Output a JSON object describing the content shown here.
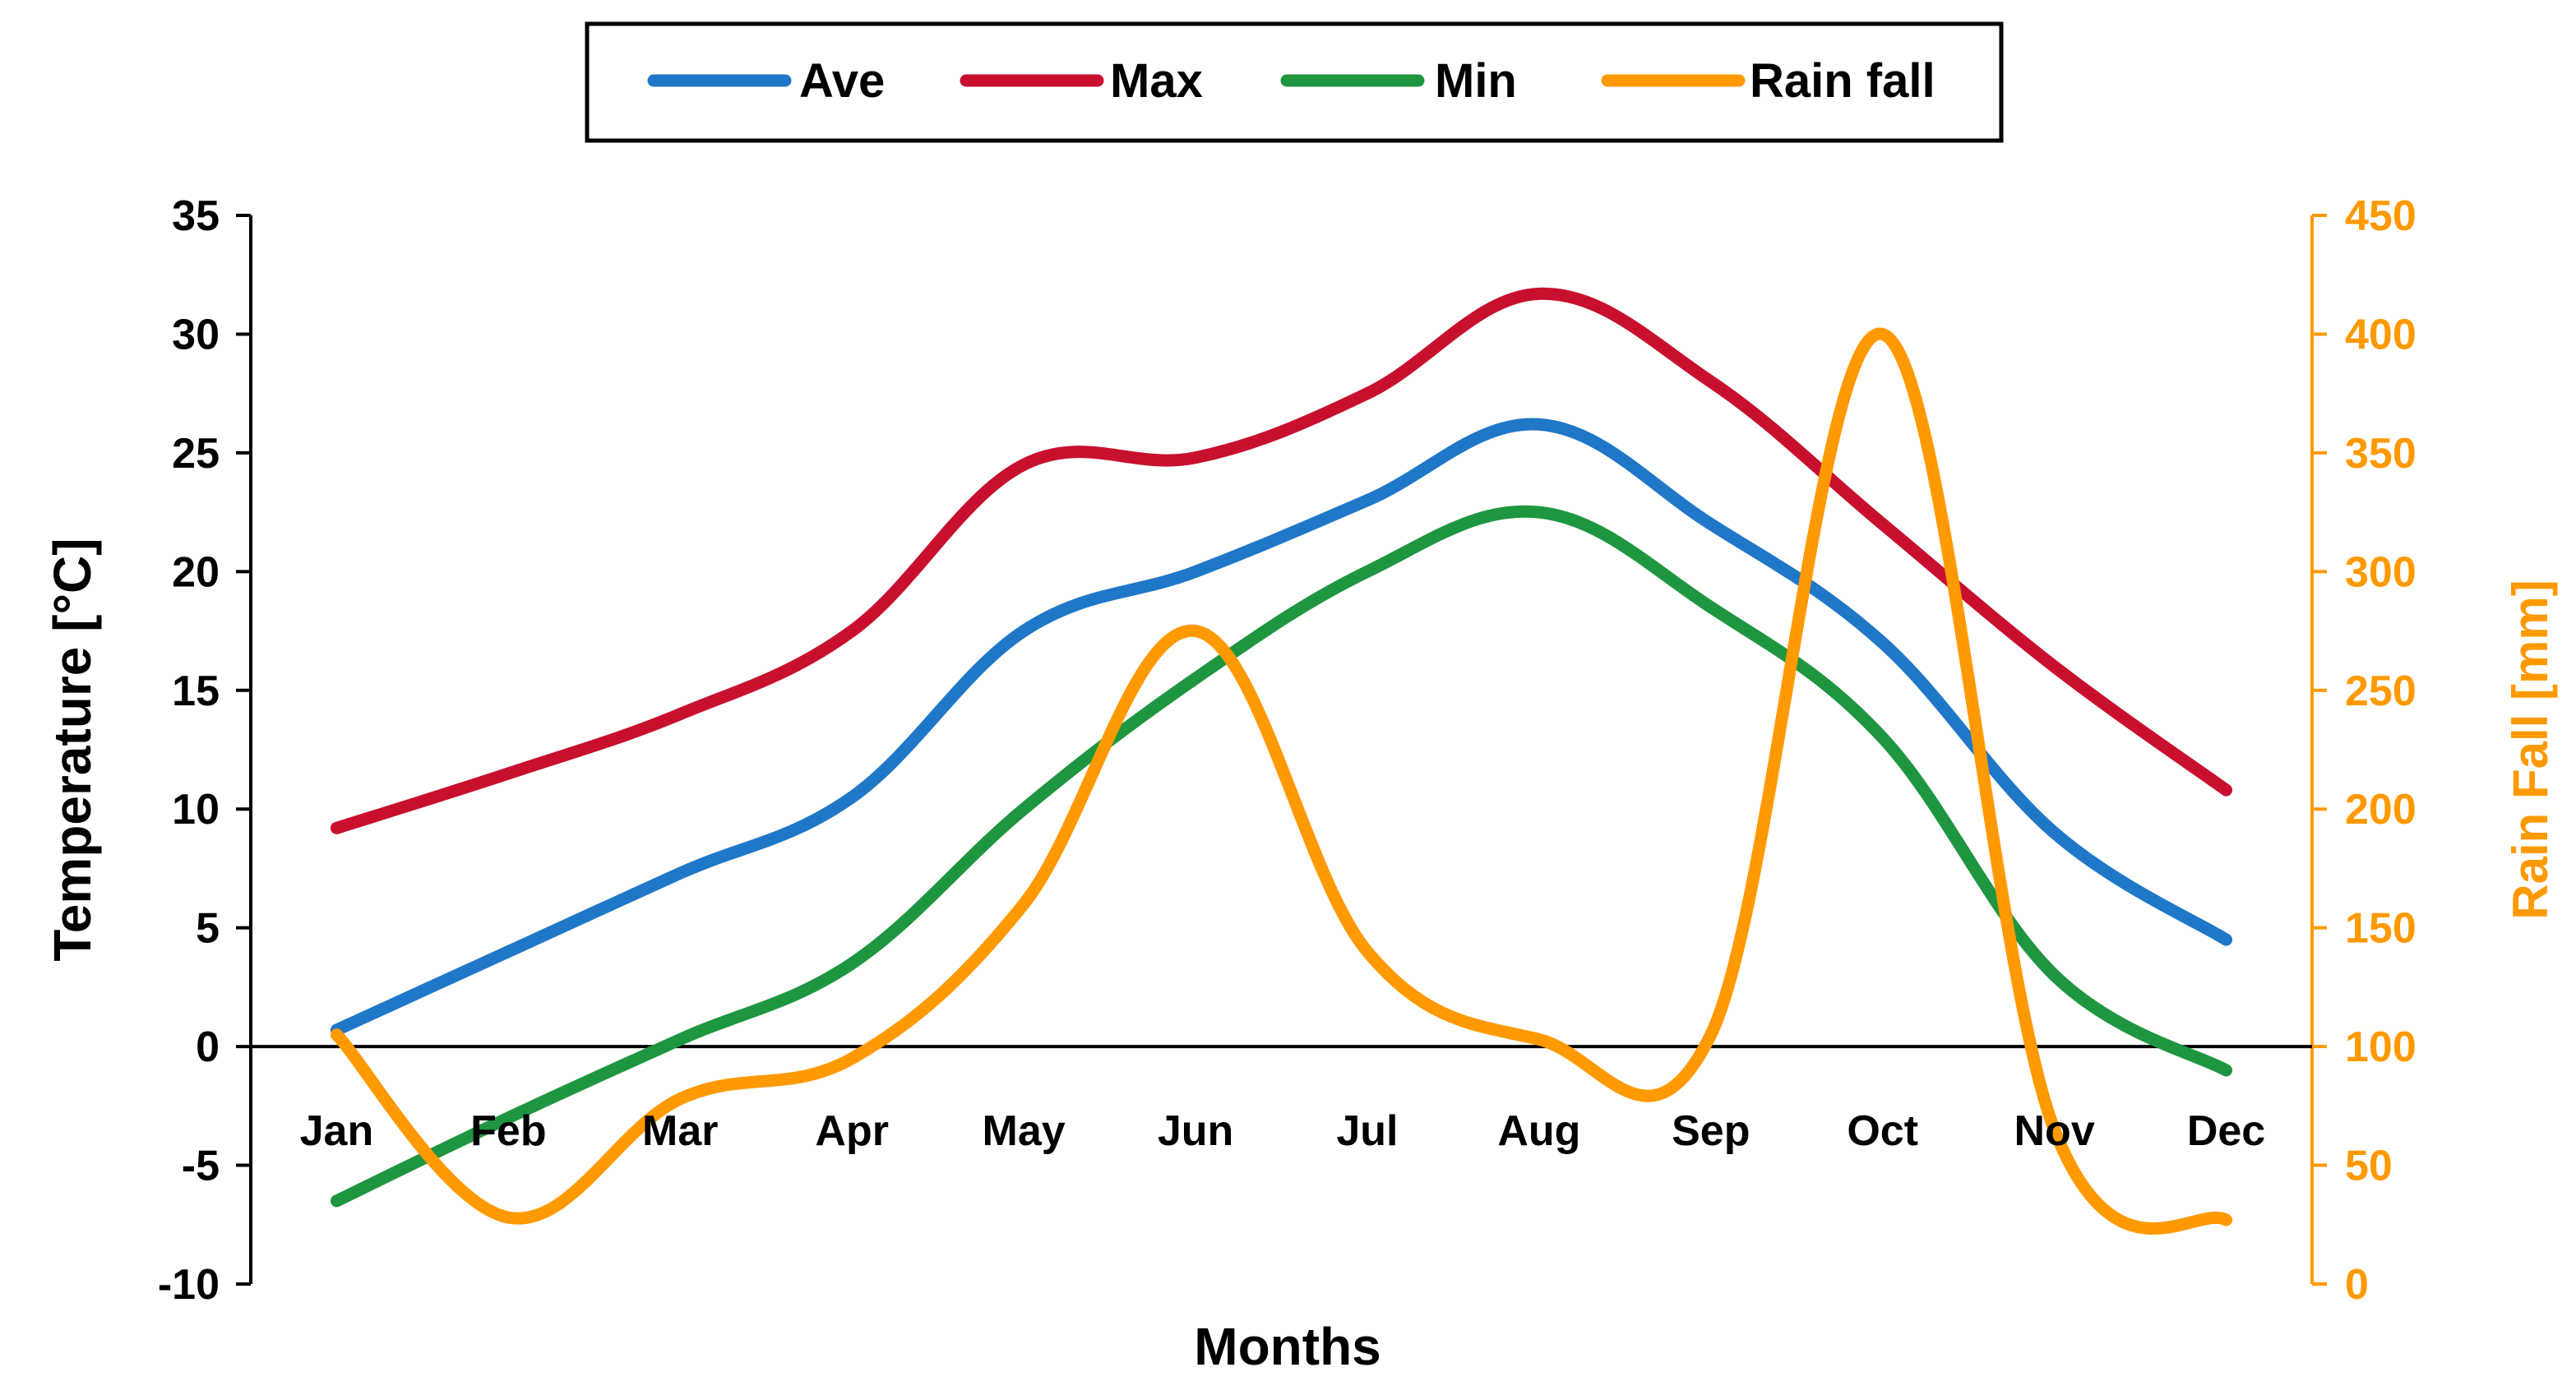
{
  "chart_data": {
    "type": "line",
    "categories": [
      "Jan",
      "Feb",
      "Mar",
      "Apr",
      "May",
      "Jun",
      "Jul",
      "Aug",
      "Sep",
      "Oct",
      "Nov",
      "Dec"
    ],
    "series": [
      {
        "name": "Ave",
        "axis": "left",
        "color": "#1f77c8",
        "values": [
          0.7,
          4.0,
          7.3,
          10.5,
          17.5,
          20.0,
          23.0,
          26.2,
          22.0,
          17.0,
          9.0,
          4.5
        ]
      },
      {
        "name": "Max",
        "axis": "left",
        "color": "#c8102e",
        "values": [
          9.2,
          11.5,
          14.0,
          17.5,
          24.5,
          24.8,
          27.5,
          31.7,
          28.0,
          22.0,
          16.0,
          10.8
        ]
      },
      {
        "name": "Min",
        "axis": "left",
        "color": "#1e9640",
        "values": [
          -6.5,
          -3.0,
          0.3,
          3.5,
          10.0,
          15.5,
          20.0,
          22.5,
          18.5,
          13.0,
          3.0,
          -1.0
        ]
      },
      {
        "name": "Rain fall",
        "axis": "right",
        "color": "#ff9900",
        "values": [
          105,
          28,
          78,
          95,
          160,
          275,
          140,
          103,
          105,
          400,
          65,
          27
        ]
      }
    ],
    "xlabel": "Months",
    "ylabel": "Temperature [°C]",
    "y2label": "Rain Fall [mm]",
    "ylim": [
      -10,
      35
    ],
    "yticks": [
      "35",
      "30",
      "25",
      "20",
      "15",
      "10",
      "5",
      "0",
      "-5",
      "-10"
    ],
    "y2lim": [
      0,
      450
    ],
    "y2ticks": [
      "450",
      "400",
      "350",
      "300",
      "250",
      "200",
      "150",
      "100",
      "50",
      "0"
    ],
    "legend": "top-center",
    "grid": false,
    "y2_color": "#ff9900"
  }
}
